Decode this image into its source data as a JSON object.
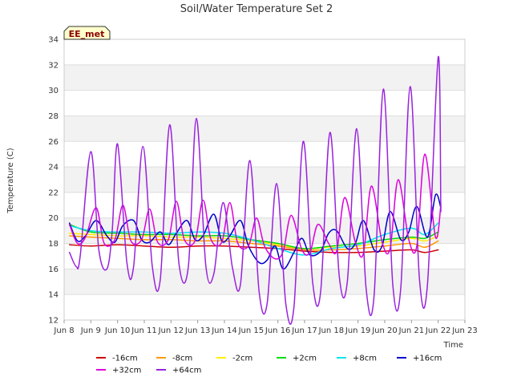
{
  "chart_data": {
    "type": "line",
    "title": "Soil/Water Temperature Set 2",
    "xlabel": "Time",
    "ylabel": "Temperature (C)",
    "badge": "EE_met",
    "xlim": [
      8,
      23
    ],
    "ylim": [
      12,
      34
    ],
    "grid": "horizontal-bands",
    "legend": "bottom",
    "x_ticks": [
      {
        "v": 8,
        "label": "Jun 8"
      },
      {
        "v": 9,
        "label": "Jun 9"
      },
      {
        "v": 10,
        "label": "Jun 10"
      },
      {
        "v": 11,
        "label": "Jun 11"
      },
      {
        "v": 12,
        "label": "Jun 12"
      },
      {
        "v": 13,
        "label": "Jun 13"
      },
      {
        "v": 14,
        "label": "Jun 14"
      },
      {
        "v": 15,
        "label": "Jun 15"
      },
      {
        "v": 16,
        "label": "Jun 16"
      },
      {
        "v": 17,
        "label": "Jun 17"
      },
      {
        "v": 18,
        "label": "Jun 18"
      },
      {
        "v": 19,
        "label": "Jun 19"
      },
      {
        "v": 20,
        "label": "Jun 20"
      },
      {
        "v": 21,
        "label": "Jun 21"
      },
      {
        "v": 22,
        "label": "Jun 22"
      },
      {
        "v": 23,
        "label": "Jun 23"
      }
    ],
    "y_ticks": [
      12,
      14,
      16,
      18,
      20,
      22,
      24,
      26,
      28,
      30,
      32,
      34
    ],
    "series": [
      {
        "name": "-16cm",
        "color": "#cc0000",
        "x": [
          8.2,
          9.0,
          10.0,
          11.0,
          12.0,
          13.0,
          14.0,
          15.0,
          16.0,
          17.0,
          18.0,
          19.0,
          20.0,
          21.0,
          21.5,
          22.0
        ],
        "y": [
          17.9,
          17.8,
          17.9,
          17.8,
          17.7,
          17.8,
          17.8,
          17.7,
          17.6,
          17.4,
          17.3,
          17.3,
          17.4,
          17.5,
          17.3,
          17.5
        ]
      },
      {
        "name": "-8cm",
        "color": "#ff9900",
        "x": [
          8.2,
          9.0,
          10.0,
          11.0,
          12.0,
          13.0,
          14.0,
          15.0,
          16.0,
          17.0,
          18.0,
          19.0,
          20.0,
          21.0,
          21.5,
          22.0
        ],
        "y": [
          18.6,
          18.5,
          18.4,
          18.3,
          18.3,
          18.2,
          18.2,
          18.0,
          17.8,
          17.5,
          17.5,
          17.6,
          17.8,
          18.0,
          17.7,
          18.2
        ]
      },
      {
        "name": "-2cm",
        "color": "#ffee00",
        "x": [
          8.2,
          9.0,
          10.0,
          11.0,
          12.0,
          13.0,
          14.0,
          15.0,
          16.0,
          17.0,
          18.0,
          19.0,
          20.0,
          21.0,
          21.5,
          22.0
        ],
        "y": [
          18.8,
          18.7,
          18.6,
          18.6,
          18.5,
          18.5,
          18.4,
          18.2,
          17.9,
          17.6,
          17.7,
          17.8,
          18.1,
          18.4,
          18.2,
          18.6
        ]
      },
      {
        "name": "+2cm",
        "color": "#00dd00",
        "x": [
          8.2,
          9.0,
          10.0,
          11.0,
          12.0,
          13.0,
          14.0,
          15.0,
          16.0,
          17.0,
          18.0,
          19.0,
          20.0,
          21.0,
          21.5,
          22.0
        ],
        "y": [
          19.5,
          18.9,
          18.8,
          18.7,
          18.7,
          18.6,
          18.6,
          18.3,
          18.0,
          17.6,
          17.8,
          18.0,
          18.3,
          18.5,
          18.4,
          18.9
        ]
      },
      {
        "name": "+8cm",
        "color": "#00e5ee",
        "x": [
          8.2,
          9.0,
          10.0,
          11.0,
          12.0,
          13.0,
          14.0,
          15.0,
          16.0,
          17.0,
          18.0,
          19.0,
          20.0,
          21.0,
          21.5,
          22.0
        ],
        "y": [
          19.4,
          19.0,
          18.9,
          18.9,
          18.8,
          18.9,
          18.8,
          18.3,
          17.6,
          17.1,
          17.6,
          17.9,
          18.7,
          19.2,
          18.7,
          19.6
        ]
      },
      {
        "name": "+16cm",
        "color": "#0000cc",
        "x": [
          8.2,
          8.5,
          8.8,
          9.2,
          9.6,
          9.9,
          10.2,
          10.6,
          10.9,
          11.2,
          11.6,
          11.9,
          12.2,
          12.6,
          12.9,
          13.2,
          13.6,
          13.9,
          14.2,
          14.6,
          14.9,
          15.3,
          15.6,
          15.9,
          16.2,
          16.6,
          16.9,
          17.2,
          17.6,
          17.9,
          18.2,
          18.6,
          18.9,
          19.2,
          19.6,
          19.9,
          20.2,
          20.6,
          20.9,
          21.2,
          21.6,
          21.9,
          22.1
        ],
        "y": [
          19.6,
          18.2,
          18.6,
          19.8,
          18.6,
          18.1,
          19.4,
          19.8,
          18.3,
          18.1,
          18.9,
          17.9,
          18.8,
          19.8,
          18.3,
          18.6,
          20.3,
          18.2,
          18.6,
          19.8,
          17.8,
          16.5,
          16.7,
          17.8,
          16.0,
          17.3,
          18.4,
          17.1,
          17.4,
          18.8,
          19.0,
          17.6,
          18.0,
          19.8,
          17.5,
          17.8,
          20.5,
          18.3,
          18.9,
          20.9,
          18.5,
          21.8,
          20.8
        ]
      },
      {
        "name": "+32cm",
        "color": "#dd00dd",
        "x": [
          8.2,
          8.5,
          8.8,
          9.2,
          9.5,
          9.9,
          10.2,
          10.5,
          10.9,
          11.2,
          11.5,
          11.9,
          12.2,
          12.5,
          12.9,
          13.2,
          13.5,
          13.9,
          14.2,
          14.5,
          14.9,
          15.2,
          15.5,
          15.9,
          16.2,
          16.5,
          16.9,
          17.2,
          17.5,
          17.9,
          18.2,
          18.5,
          18.9,
          19.2,
          19.5,
          19.9,
          20.2,
          20.5,
          20.9,
          21.2,
          21.5,
          21.9,
          22.1
        ],
        "y": [
          19.5,
          18.0,
          18.5,
          20.8,
          18.0,
          18.3,
          21.0,
          18.2,
          18.3,
          20.7,
          18.1,
          18.3,
          21.3,
          18.3,
          18.2,
          21.4,
          18.3,
          18.1,
          21.2,
          18.0,
          17.8,
          20.0,
          17.8,
          16.8,
          17.4,
          20.2,
          17.5,
          17.3,
          19.5,
          18.0,
          17.4,
          21.6,
          18.1,
          17.2,
          22.5,
          18.1,
          17.6,
          23.0,
          18.3,
          17.8,
          25.0,
          18.5,
          21.0
        ]
      },
      {
        "name": "+64cm",
        "color": "#9922dd",
        "x": [
          8.2,
          8.45,
          8.6,
          9.0,
          9.3,
          9.6,
          9.8,
          10.0,
          10.35,
          10.6,
          10.95,
          11.3,
          11.6,
          11.95,
          12.3,
          12.65,
          12.95,
          13.3,
          13.6,
          13.95,
          14.3,
          14.6,
          14.95,
          15.3,
          15.6,
          15.95,
          16.3,
          16.6,
          16.95,
          17.3,
          17.6,
          17.95,
          18.3,
          18.6,
          18.95,
          19.3,
          19.6,
          19.95,
          20.3,
          20.6,
          20.95,
          21.3,
          21.6,
          22.0,
          22.1
        ],
        "y": [
          17.3,
          16.2,
          17.0,
          25.2,
          17.5,
          16.0,
          19.0,
          25.8,
          16.5,
          16.2,
          25.6,
          16.2,
          15.2,
          27.3,
          16.4,
          16.2,
          27.8,
          16.3,
          15.6,
          21.2,
          16.1,
          14.8,
          24.5,
          14.2,
          13.3,
          22.7,
          13.2,
          13.0,
          26.0,
          15.0,
          14.2,
          26.7,
          15.4,
          15.0,
          27.0,
          14.5,
          13.9,
          30.1,
          14.8,
          14.5,
          30.3,
          15.2,
          14.8,
          32.6,
          20.5
        ]
      }
    ]
  }
}
